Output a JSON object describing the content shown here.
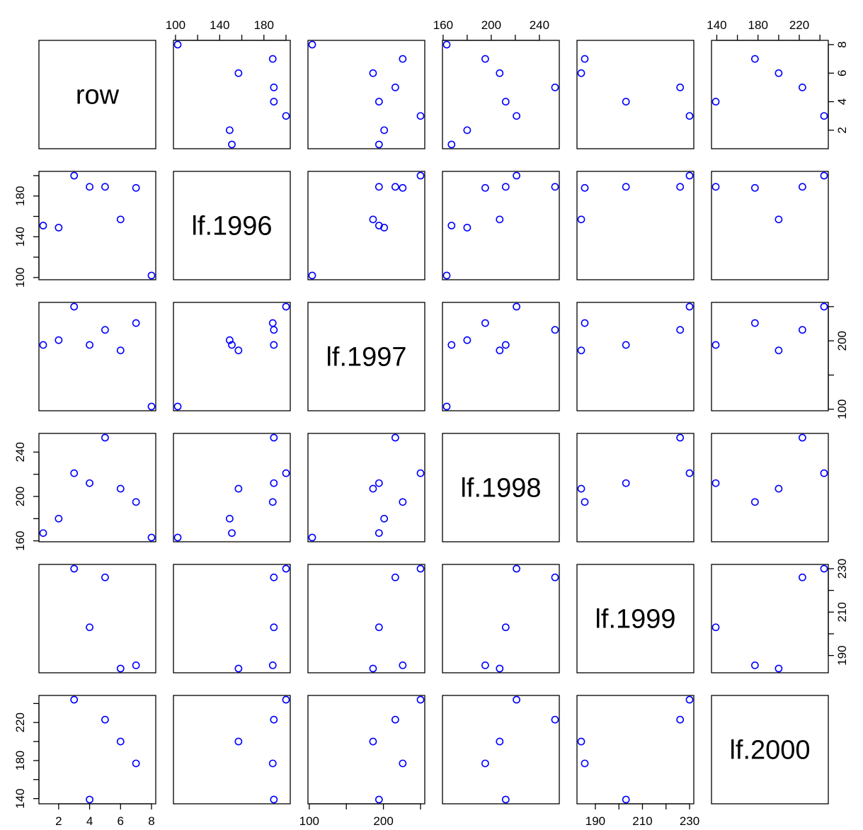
{
  "chart_data": {
    "type": "scatter-matrix",
    "variables": [
      "row",
      "lf.1996",
      "lf.1997",
      "lf.1998",
      "lf.1999",
      "lf.2000"
    ],
    "observations": [
      {
        "row": 1,
        "lf.1996": 151,
        "lf.1997": 194,
        "lf.1998": 167,
        "lf.1999": null,
        "lf.2000": null
      },
      {
        "row": 2,
        "lf.1996": 149,
        "lf.1997": 201,
        "lf.1998": 180,
        "lf.1999": null,
        "lf.2000": null
      },
      {
        "row": 3,
        "lf.1996": 200,
        "lf.1997": 250,
        "lf.1998": 221,
        "lf.1999": 230,
        "lf.2000": 244
      },
      {
        "row": 4,
        "lf.1996": 189,
        "lf.1997": 194,
        "lf.1998": 212,
        "lf.1999": 203,
        "lf.2000": 139
      },
      {
        "row": 5,
        "lf.1996": 189,
        "lf.1997": 216,
        "lf.1998": 253,
        "lf.1999": 226,
        "lf.2000": 223
      },
      {
        "row": 6,
        "lf.1996": 157,
        "lf.1997": 186,
        "lf.1998": 207,
        "lf.1999": 184,
        "lf.2000": 200
      },
      {
        "row": 7,
        "lf.1996": 188,
        "lf.1997": 226,
        "lf.1998": 195,
        "lf.1999": 185.5,
        "lf.2000": 177
      },
      {
        "row": 8,
        "lf.1996": 102,
        "lf.1997": 104,
        "lf.1998": 163,
        "lf.1999": null,
        "lf.2000": null
      }
    ],
    "ranges": {
      "row": [
        1,
        8
      ],
      "lf.1996": [
        102,
        200
      ],
      "lf.1997": [
        104,
        250
      ],
      "lf.1998": [
        163,
        253
      ],
      "lf.1999": [
        184,
        230
      ],
      "lf.2000": [
        139,
        244
      ]
    },
    "ticks": {
      "row": [
        2,
        4,
        6,
        8
      ],
      "lf.1996": [
        100,
        140,
        180
      ],
      "lf.1997": [
        100,
        200
      ],
      "lf.1998": [
        160,
        200,
        240
      ],
      "lf.1999": [
        190,
        210,
        230
      ],
      "lf.2000": [
        140,
        180,
        220
      ]
    },
    "minor_ticks": {
      "lf.1996": [
        120,
        160,
        200
      ],
      "lf.1997": [
        150,
        250
      ],
      "lf.1998": [
        180,
        220
      ],
      "lf.1999": [
        200,
        220
      ],
      "lf.2000": [
        160,
        200,
        240
      ]
    },
    "point_color": "#0000ff",
    "grid": false
  }
}
